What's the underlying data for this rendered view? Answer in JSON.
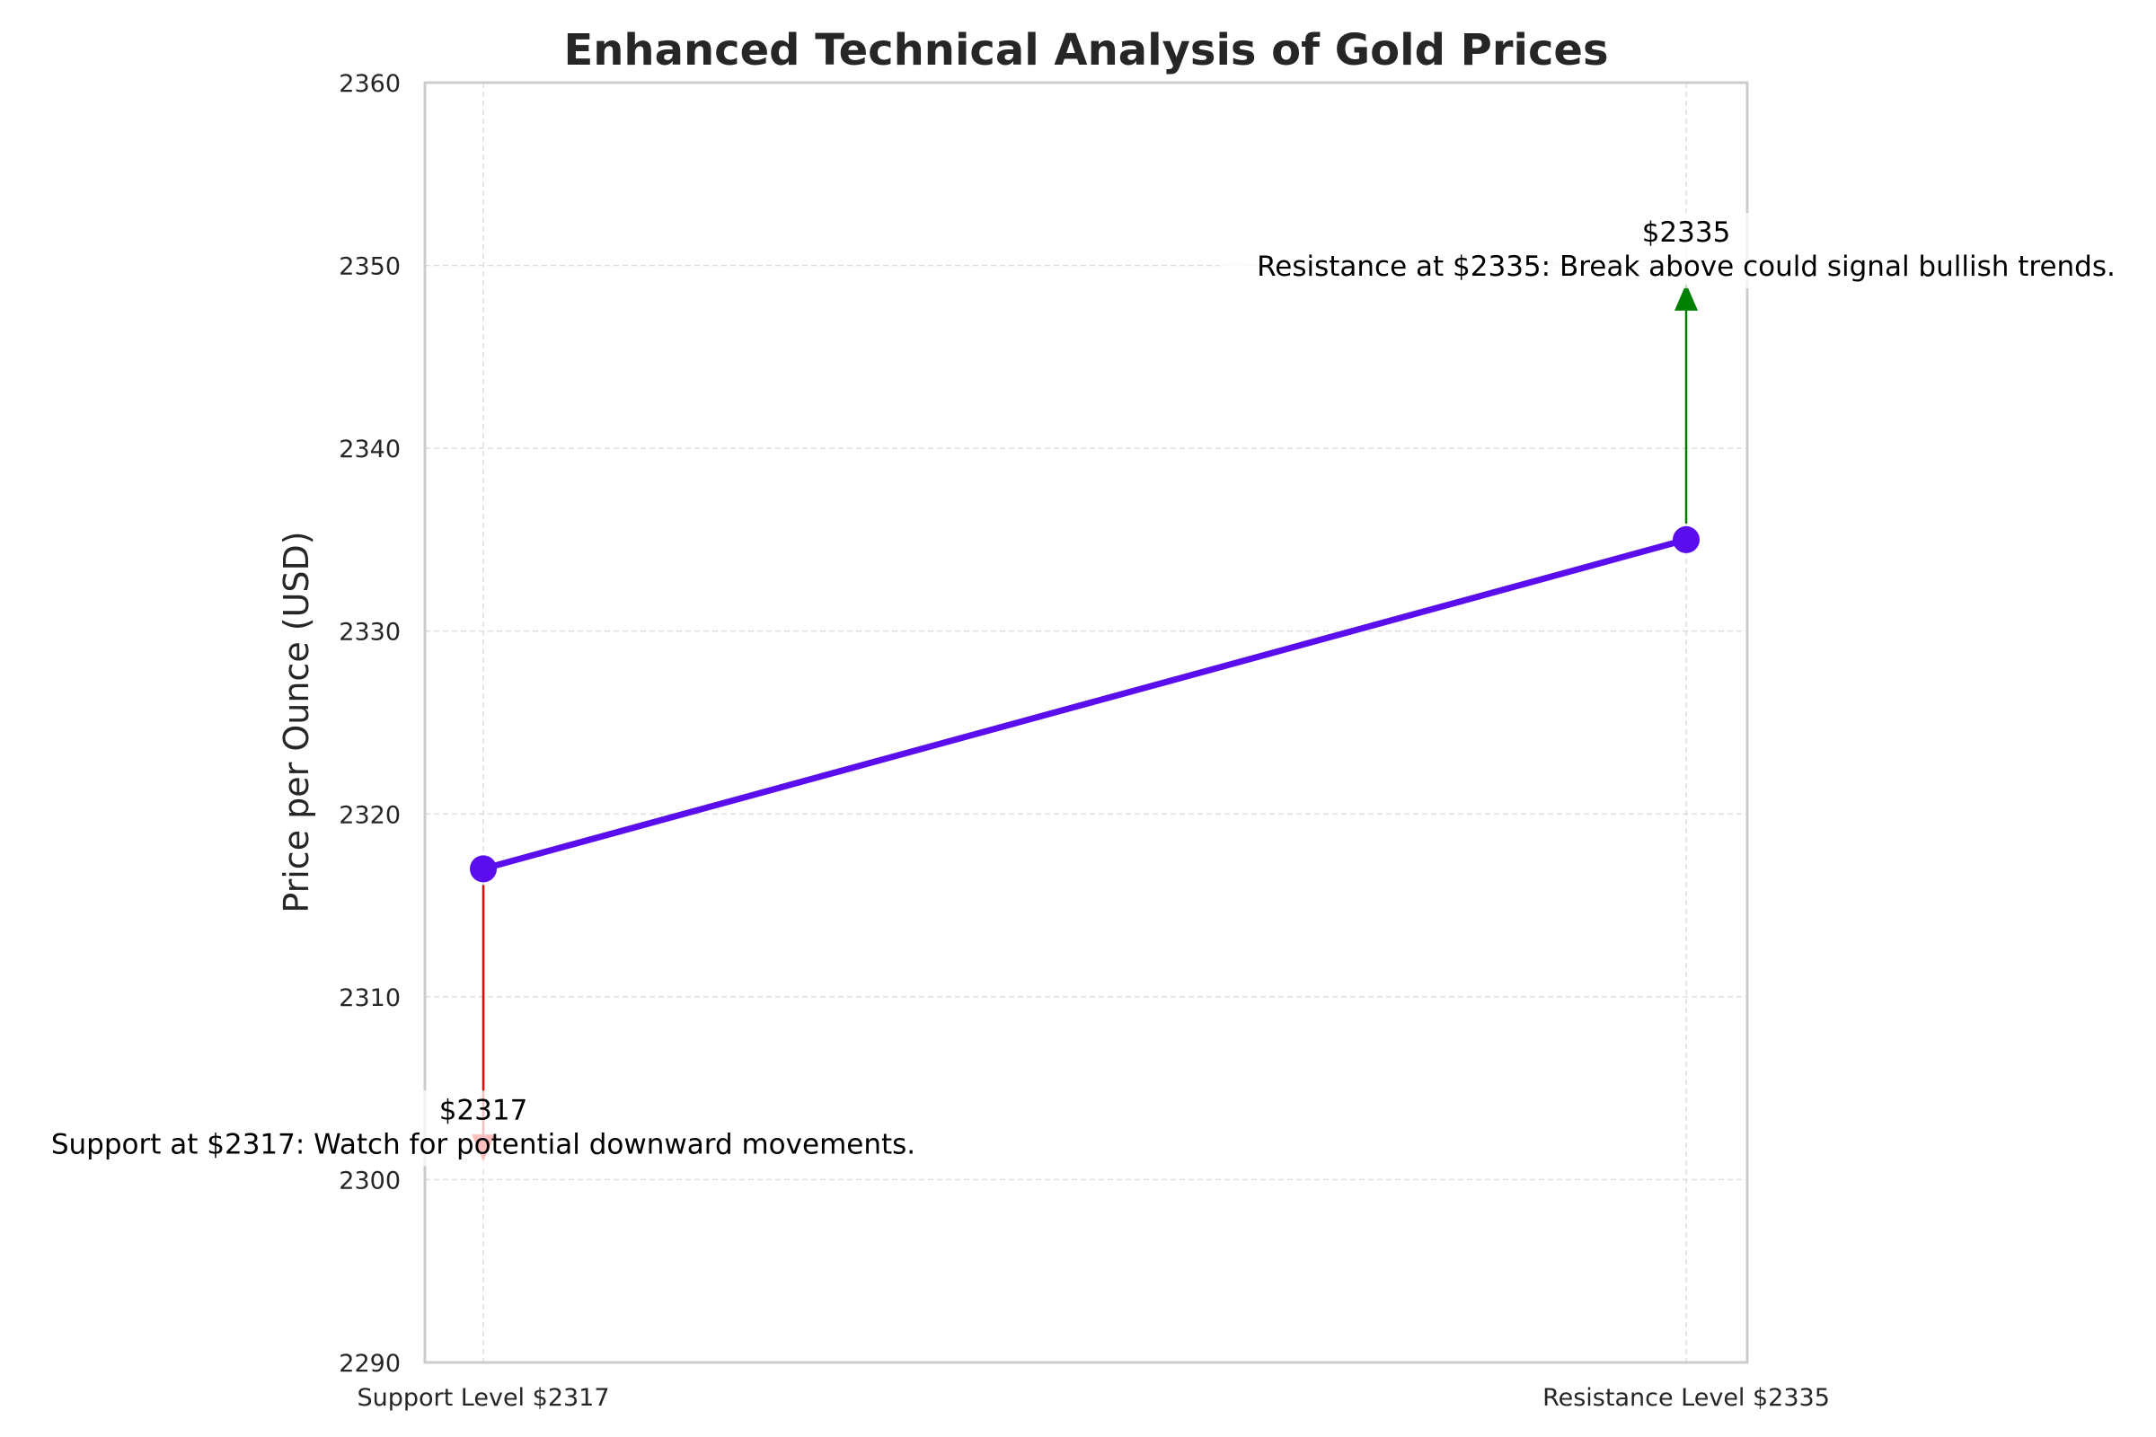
{
  "chart_data": {
    "type": "line",
    "title": "Enhanced Technical Analysis of Gold Prices",
    "xlabel": "",
    "ylabel": "Price per Ounce (USD)",
    "categories": [
      "Support Level $2317",
      "Resistance Level $2335"
    ],
    "series": [
      {
        "values": [
          2317,
          2335
        ],
        "color": "#5a0ded"
      }
    ],
    "ylim": [
      2290,
      2360
    ],
    "yticks": [
      2290,
      2300,
      2310,
      2320,
      2330,
      2340,
      2350,
      2360
    ],
    "grid": true,
    "annotations": [
      {
        "category": "Support Level $2317",
        "point_value": 2317,
        "arrow_to": 2301,
        "direction": "down",
        "color": "#ee0000",
        "value_label": "$2317",
        "text": "Support at $2317: Watch for potential downward movements."
      },
      {
        "category": "Resistance Level $2335",
        "point_value": 2335,
        "arrow_to": 2349,
        "direction": "up",
        "color": "#008000",
        "value_label": "$2335",
        "text": "Resistance at $2335: Break above could signal bullish trends."
      }
    ]
  }
}
